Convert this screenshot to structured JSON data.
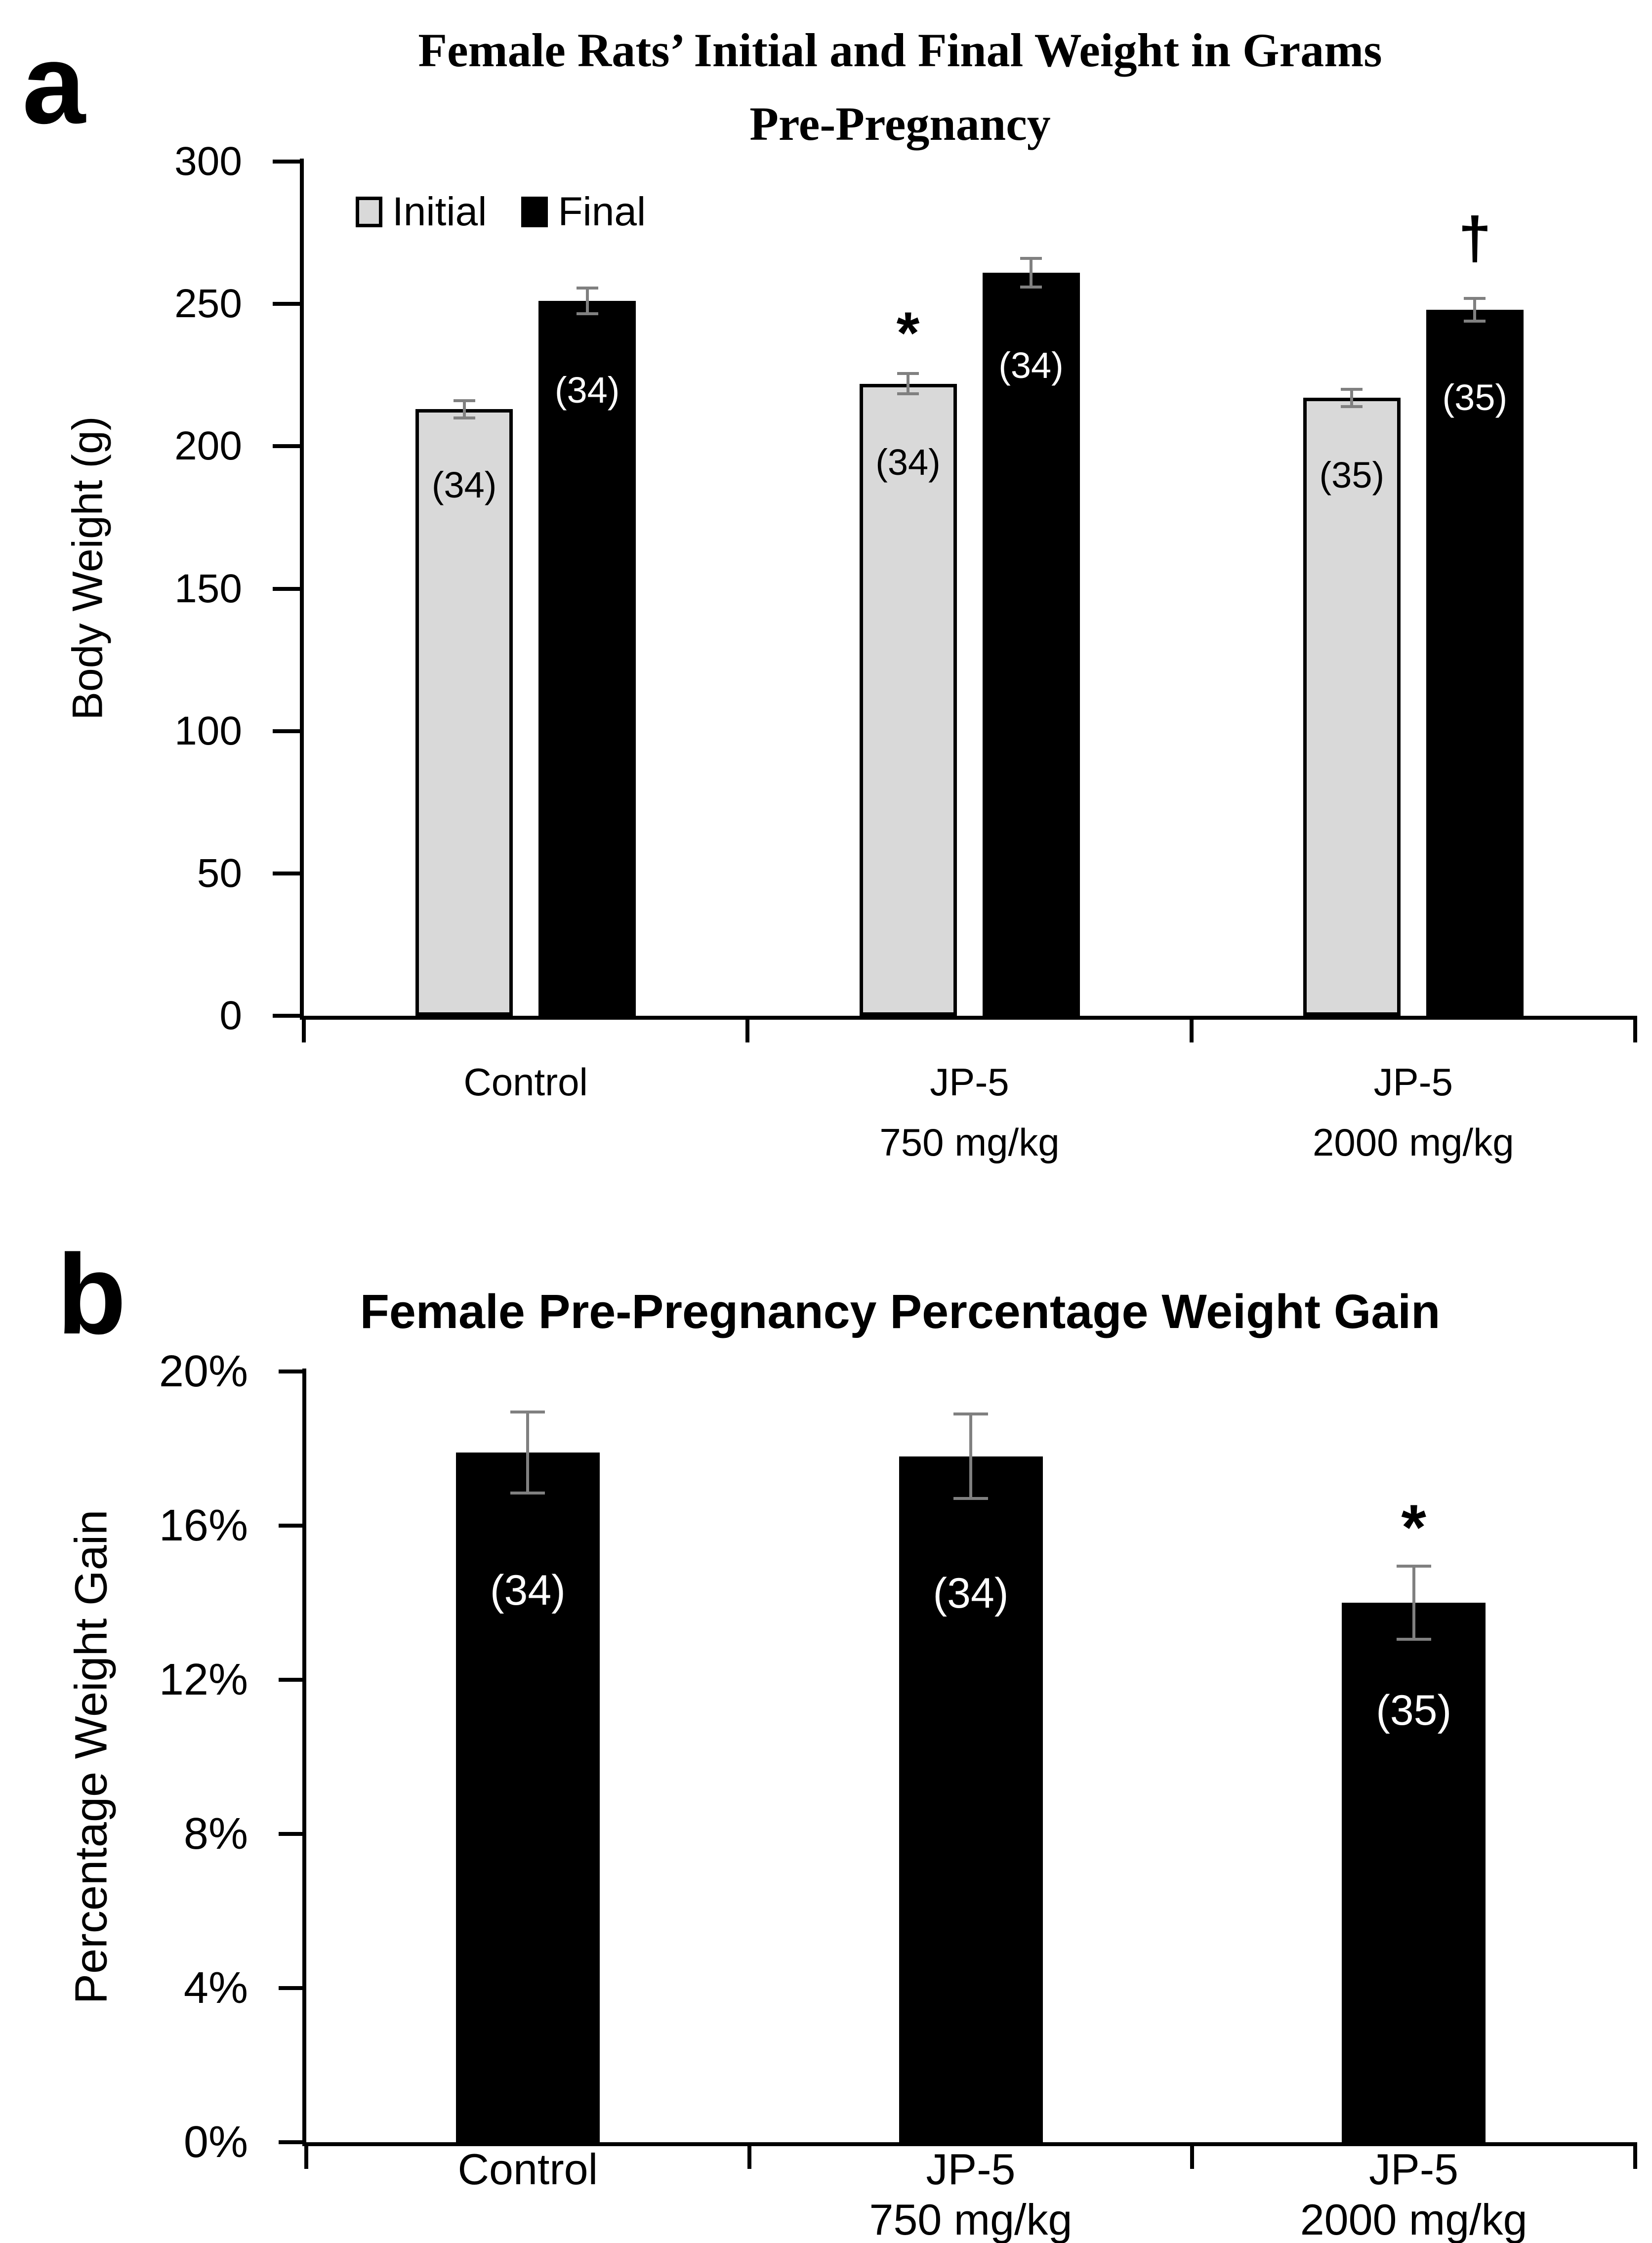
{
  "figure": {
    "panel_a_letter": "a",
    "panel_b_letter": "b"
  },
  "chart_data": [
    {
      "panel": "a",
      "type": "bar",
      "title_lines": [
        "Female Rats’ Initial and Final Weight in Grams",
        "Pre-Pregnancy"
      ],
      "ylabel": "Body Weight (g)",
      "ylim": [
        0,
        300
      ],
      "yticks": [
        300,
        250,
        200,
        150,
        100,
        50,
        0
      ],
      "ytick_labels": [
        "300",
        "250",
        "200",
        "150",
        "100",
        "50",
        "0"
      ],
      "categories": [
        [
          "Control"
        ],
        [
          "JP-5",
          "750 mg/kg"
        ],
        [
          "JP-5",
          "2000 mg/kg"
        ]
      ],
      "legend_position": "top-left-inside",
      "grid": "off",
      "error_bar_color": "#808080",
      "series": [
        {
          "name": "Initial",
          "fill": "#d9d9d9",
          "border": "#000000",
          "label_color": "#000000",
          "values": [
            213,
            222,
            217
          ],
          "errors": [
            3,
            3.5,
            3
          ],
          "counts": [
            "(34)",
            "(34)",
            "(35)"
          ]
        },
        {
          "name": "Final",
          "fill": "#000000",
          "border": "#000000",
          "label_color": "#ffffff",
          "values": [
            251,
            261,
            248
          ],
          "errors": [
            4.5,
            5,
            4
          ],
          "counts": [
            "(34)",
            "(34)",
            "(35)"
          ]
        }
      ],
      "annotations": [
        {
          "symbol": "*",
          "series_index": 0,
          "category_index": 1,
          "y": 244
        },
        {
          "symbol": "†",
          "series_index": 1,
          "category_index": 2,
          "y": 272
        }
      ]
    },
    {
      "panel": "b",
      "type": "bar",
      "title_lines": [
        "Female Pre-Pregnancy Percentage Weight Gain"
      ],
      "ylabel": "Percentage Weight Gain",
      "ylim": [
        0,
        20
      ],
      "yticks": [
        20,
        16,
        12,
        8,
        4,
        0
      ],
      "ytick_labels": [
        "20%",
        "16%",
        "12%",
        "8%",
        "4%",
        "0%"
      ],
      "categories": [
        [
          "Control"
        ],
        [
          "JP-5",
          "750 mg/kg"
        ],
        [
          "JP-5",
          "2000 mg/kg"
        ]
      ],
      "legend_position": "none",
      "grid": "off",
      "error_bar_color": "#808080",
      "series": [
        {
          "name": "Percentage Weight Gain",
          "fill": "#000000",
          "border": "#000000",
          "label_color": "#ffffff",
          "values": [
            17.9,
            17.8,
            14.0
          ],
          "errors": [
            1.05,
            1.1,
            0.95
          ],
          "counts": [
            "(34)",
            "(34)",
            "(35)"
          ]
        }
      ],
      "annotations": [
        {
          "symbol": "*",
          "series_index": 0,
          "category_index": 2,
          "y": 16.3
        }
      ]
    }
  ]
}
